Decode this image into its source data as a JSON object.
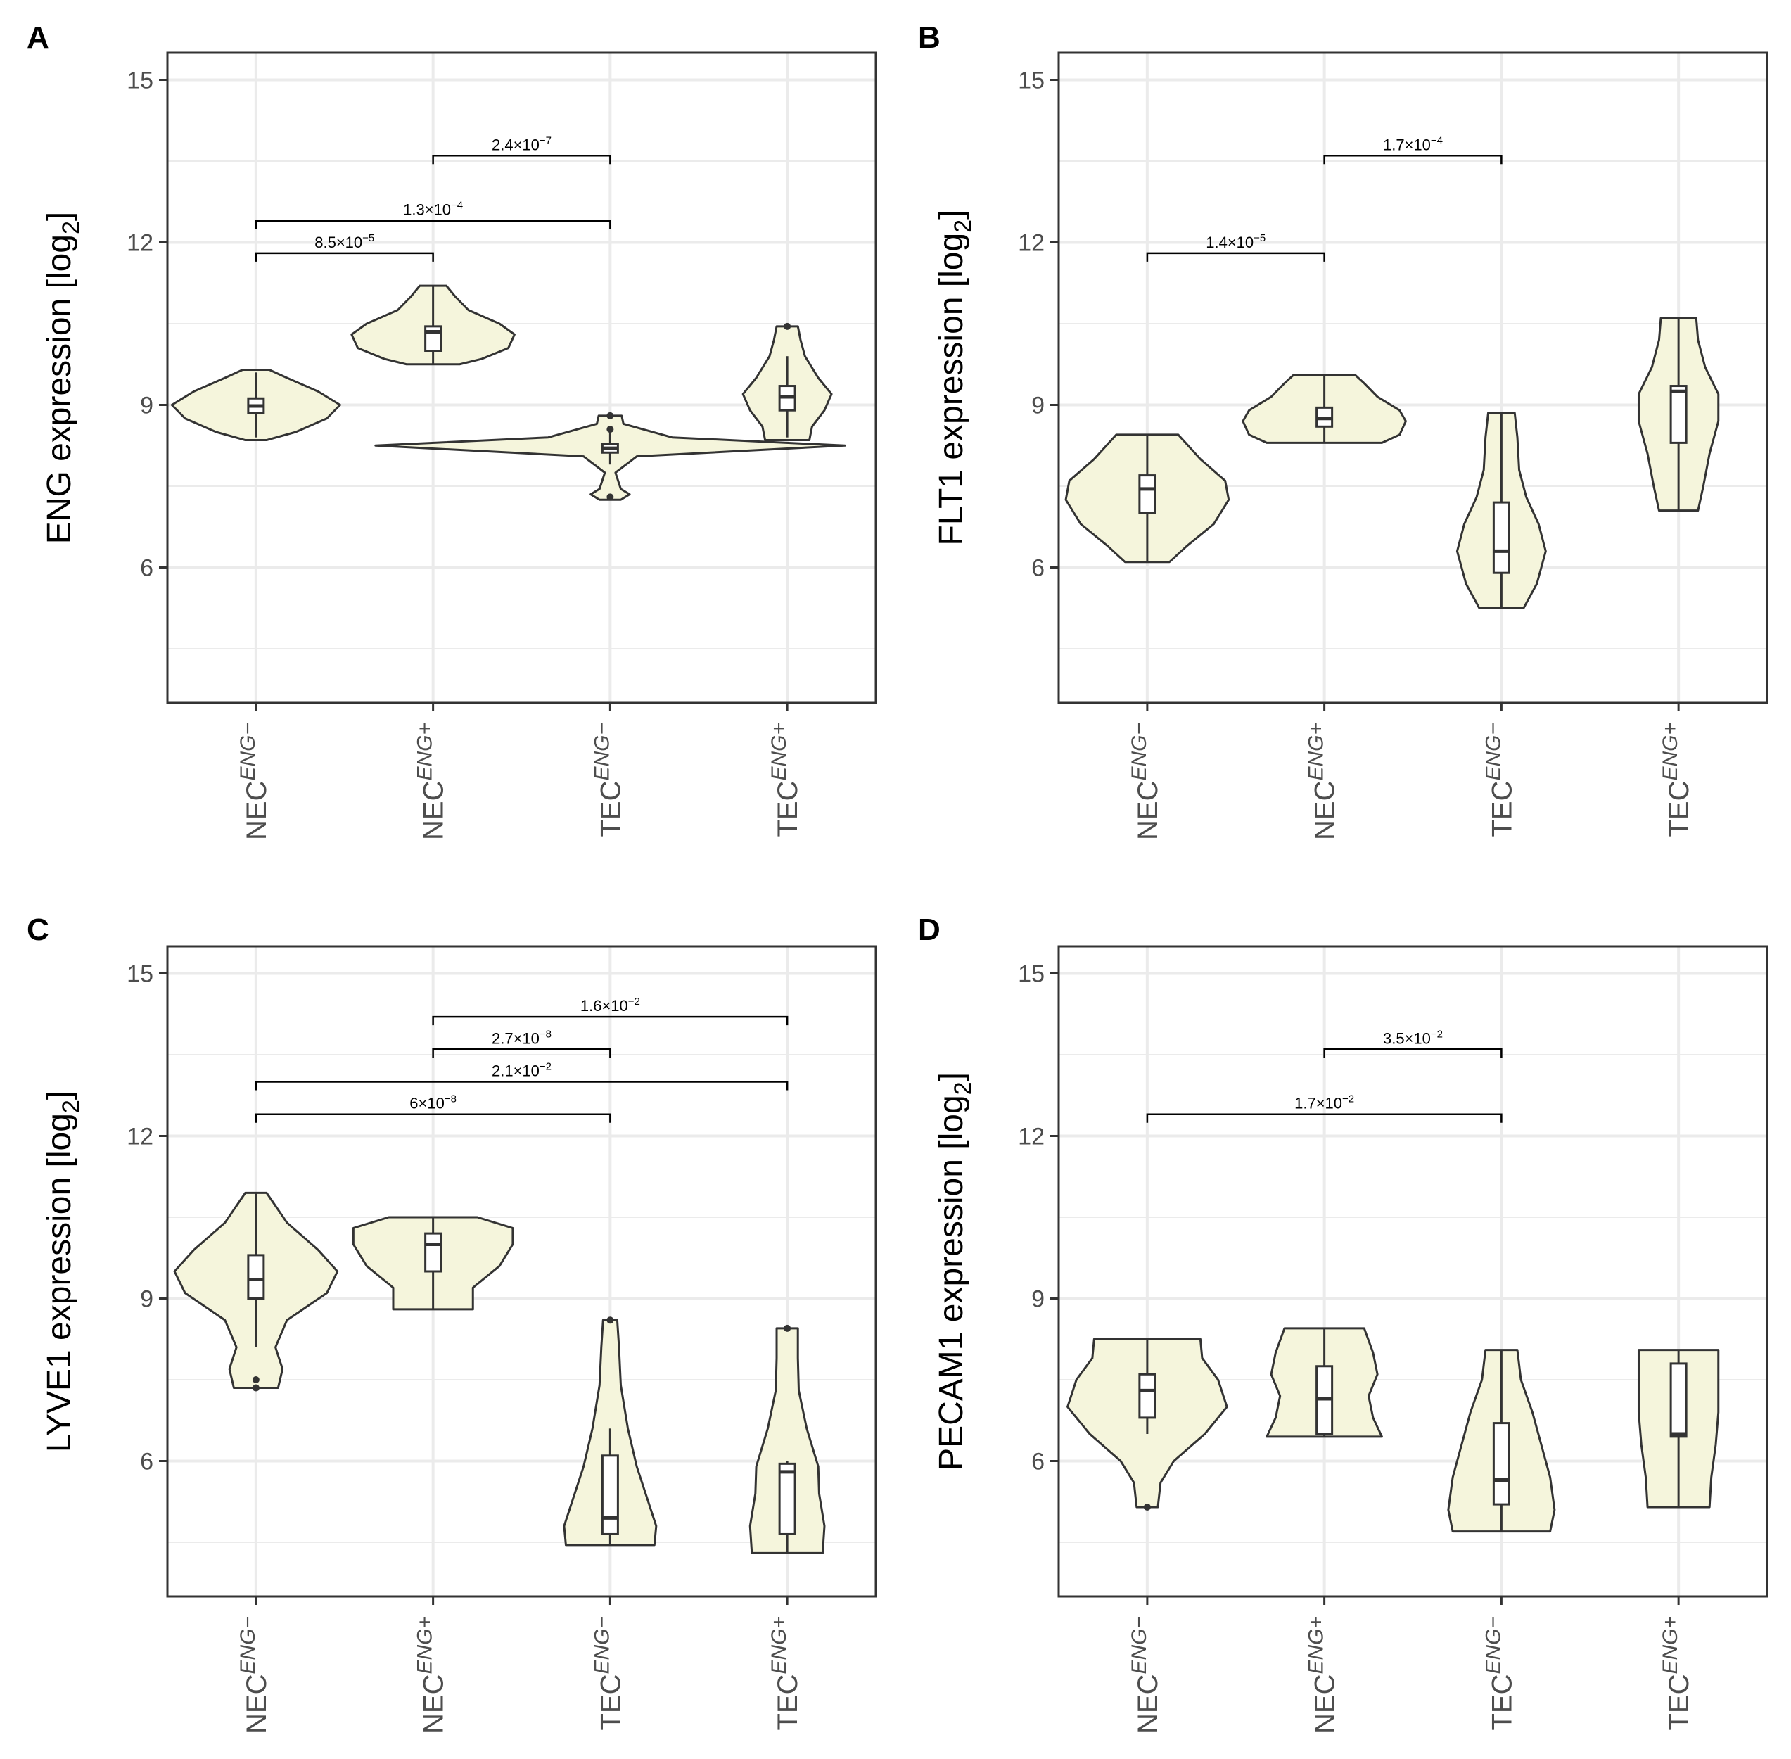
{
  "chart_data": [
    {
      "panel": "A",
      "type": "violin",
      "ylabel": "ENG expression [log",
      "ylabel_sub": "2",
      "ylabel_end": "]",
      "ylim": [
        3.5,
        15.5
      ],
      "yticks": [
        "15",
        "12",
        "9",
        "6"
      ],
      "ytick_values": [
        15,
        12,
        9,
        6
      ],
      "minor_grid": [
        13.5,
        10.5,
        7.5,
        4.5
      ],
      "categories": [
        {
          "base": "NEC",
          "sup": "ENG−"
        },
        {
          "base": "NEC",
          "sup": "ENG+"
        },
        {
          "base": "TEC",
          "sup": "ENG−"
        },
        {
          "base": "TEC",
          "sup": "ENG+"
        }
      ],
      "groups": [
        {
          "violin": [
            [
              8.35,
              0.12
            ],
            [
              8.5,
              0.45
            ],
            [
              8.75,
              0.8
            ],
            [
              9.0,
              0.95
            ],
            [
              9.25,
              0.7
            ],
            [
              9.5,
              0.35
            ],
            [
              9.65,
              0.15
            ]
          ],
          "box": {
            "q1": 8.85,
            "median": 8.98,
            "q3": 9.12,
            "wmin": 8.4,
            "wmax": 9.6
          },
          "outliers": []
        },
        {
          "violin": [
            [
              9.75,
              0.3
            ],
            [
              9.85,
              0.55
            ],
            [
              10.05,
              0.85
            ],
            [
              10.3,
              0.92
            ],
            [
              10.5,
              0.75
            ],
            [
              10.75,
              0.4
            ],
            [
              11.0,
              0.25
            ],
            [
              11.2,
              0.15
            ]
          ],
          "box": {
            "q1": 10.0,
            "median": 10.35,
            "q3": 10.45,
            "wmin": 9.75,
            "wmax": 11.2
          },
          "outliers": []
        },
        {
          "violin": [
            [
              7.25,
              0.12
            ],
            [
              7.35,
              0.22
            ],
            [
              7.45,
              0.12
            ],
            [
              7.75,
              0.06
            ],
            [
              8.05,
              0.3
            ],
            [
              8.25,
              2.65
            ],
            [
              8.4,
              0.7
            ],
            [
              8.65,
              0.15
            ],
            [
              8.8,
              0.13
            ]
          ],
          "box": {
            "q1": 8.12,
            "median": 8.2,
            "q3": 8.28,
            "wmin": 7.9,
            "wmax": 8.5
          },
          "outliers": [
            7.3,
            8.55,
            8.8
          ]
        },
        {
          "violin": [
            [
              8.35,
              0.25
            ],
            [
              8.6,
              0.28
            ],
            [
              8.9,
              0.42
            ],
            [
              9.2,
              0.5
            ],
            [
              9.5,
              0.35
            ],
            [
              9.9,
              0.2
            ],
            [
              10.2,
              0.15
            ],
            [
              10.45,
              0.12
            ]
          ],
          "box": {
            "q1": 8.9,
            "median": 9.15,
            "q3": 9.35,
            "wmin": 8.4,
            "wmax": 9.9
          },
          "outliers": [
            10.45
          ]
        }
      ],
      "brackets": [
        {
          "from": 1,
          "to": 2,
          "y": 13.6,
          "label": "2.4×10",
          "exp": "−7"
        },
        {
          "from": 0,
          "to": 2,
          "y": 12.4,
          "label": "1.3×10",
          "exp": "−4"
        },
        {
          "from": 0,
          "to": 1,
          "y": 11.8,
          "label": "8.5×10",
          "exp": "−5"
        }
      ]
    },
    {
      "panel": "B",
      "type": "violin",
      "ylabel": "FLT1 expression [log",
      "ylabel_sub": "2",
      "ylabel_end": "]",
      "ylim": [
        3.5,
        15.5
      ],
      "yticks": [
        "15",
        "12",
        "9",
        "6"
      ],
      "ytick_values": [
        15,
        12,
        9,
        6
      ],
      "minor_grid": [
        13.5,
        10.5,
        7.5,
        4.5
      ],
      "categories": [
        {
          "base": "NEC",
          "sup": "ENG−"
        },
        {
          "base": "NEC",
          "sup": "ENG+"
        },
        {
          "base": "TEC",
          "sup": "ENG−"
        },
        {
          "base": "TEC",
          "sup": "ENG+"
        }
      ],
      "groups": [
        {
          "violin": [
            [
              6.1,
              0.25
            ],
            [
              6.4,
              0.45
            ],
            [
              6.8,
              0.75
            ],
            [
              7.25,
              0.92
            ],
            [
              7.6,
              0.88
            ],
            [
              8.0,
              0.6
            ],
            [
              8.45,
              0.35
            ]
          ],
          "box": {
            "q1": 7.0,
            "median": 7.45,
            "q3": 7.7,
            "wmin": 6.1,
            "wmax": 8.45
          },
          "outliers": []
        },
        {
          "violin": [
            [
              8.3,
              0.65
            ],
            [
              8.45,
              0.85
            ],
            [
              8.7,
              0.92
            ],
            [
              8.9,
              0.85
            ],
            [
              9.15,
              0.6
            ],
            [
              9.4,
              0.45
            ],
            [
              9.55,
              0.35
            ]
          ],
          "box": {
            "q1": 8.6,
            "median": 8.75,
            "q3": 8.95,
            "wmin": 8.3,
            "wmax": 9.55
          },
          "outliers": []
        },
        {
          "violin": [
            [
              5.25,
              0.25
            ],
            [
              5.7,
              0.4
            ],
            [
              6.3,
              0.5
            ],
            [
              6.8,
              0.42
            ],
            [
              7.3,
              0.28
            ],
            [
              7.8,
              0.2
            ],
            [
              8.4,
              0.18
            ],
            [
              8.85,
              0.15
            ]
          ],
          "box": {
            "q1": 5.9,
            "median": 6.3,
            "q3": 7.2,
            "wmin": 5.25,
            "wmax": 8.85
          },
          "outliers": []
        },
        {
          "violin": [
            [
              7.05,
              0.22
            ],
            [
              7.5,
              0.28
            ],
            [
              8.1,
              0.35
            ],
            [
              8.7,
              0.45
            ],
            [
              9.2,
              0.45
            ],
            [
              9.7,
              0.3
            ],
            [
              10.2,
              0.22
            ],
            [
              10.6,
              0.2
            ]
          ],
          "box": {
            "q1": 8.3,
            "median": 9.25,
            "q3": 9.35,
            "wmin": 7.05,
            "wmax": 10.6
          },
          "outliers": []
        }
      ],
      "brackets": [
        {
          "from": 1,
          "to": 2,
          "y": 13.6,
          "label": "1.7×10",
          "exp": "−4"
        },
        {
          "from": 0,
          "to": 1,
          "y": 11.8,
          "label": "1.4×10",
          "exp": "−5"
        }
      ]
    },
    {
      "panel": "C",
      "type": "violin",
      "ylabel": "LYVE1 expression [log",
      "ylabel_sub": "2",
      "ylabel_end": "]",
      "ylim": [
        3.5,
        15.5
      ],
      "yticks": [
        "15",
        "12",
        "9",
        "6"
      ],
      "ytick_values": [
        15,
        12,
        9,
        6
      ],
      "minor_grid": [
        13.5,
        10.5,
        7.5,
        4.5
      ],
      "categories": [
        {
          "base": "NEC",
          "sup": "ENG−"
        },
        {
          "base": "NEC",
          "sup": "ENG+"
        },
        {
          "base": "TEC",
          "sup": "ENG−"
        },
        {
          "base": "TEC",
          "sup": "ENG+"
        }
      ],
      "groups": [
        {
          "violin": [
            [
              7.35,
              0.25
            ],
            [
              7.7,
              0.3
            ],
            [
              8.1,
              0.22
            ],
            [
              8.6,
              0.35
            ],
            [
              9.1,
              0.8
            ],
            [
              9.5,
              0.92
            ],
            [
              9.9,
              0.7
            ],
            [
              10.4,
              0.35
            ],
            [
              10.95,
              0.12
            ]
          ],
          "box": {
            "q1": 9.0,
            "median": 9.35,
            "q3": 9.8,
            "wmin": 8.1,
            "wmax": 10.95
          },
          "outliers": [
            7.5,
            7.35
          ]
        },
        {
          "violin": [
            [
              8.8,
              0.45
            ],
            [
              9.2,
              0.45
            ],
            [
              9.6,
              0.75
            ],
            [
              10.0,
              0.9
            ],
            [
              10.3,
              0.9
            ],
            [
              10.5,
              0.5
            ]
          ],
          "box": {
            "q1": 9.5,
            "median": 10.0,
            "q3": 10.2,
            "wmin": 8.8,
            "wmax": 10.5
          },
          "outliers": []
        },
        {
          "violin": [
            [
              4.45,
              0.5
            ],
            [
              4.8,
              0.52
            ],
            [
              5.3,
              0.42
            ],
            [
              5.9,
              0.3
            ],
            [
              6.6,
              0.2
            ],
            [
              7.4,
              0.12
            ],
            [
              8.1,
              0.1
            ],
            [
              8.6,
              0.08
            ]
          ],
          "box": {
            "q1": 4.65,
            "median": 4.95,
            "q3": 6.1,
            "wmin": 4.45,
            "wmax": 6.6
          },
          "outliers": [
            8.6
          ]
        },
        {
          "violin": [
            [
              4.3,
              0.4
            ],
            [
              4.8,
              0.42
            ],
            [
              5.4,
              0.36
            ],
            [
              5.9,
              0.35
            ],
            [
              6.6,
              0.22
            ],
            [
              7.3,
              0.13
            ],
            [
              7.9,
              0.12
            ],
            [
              8.45,
              0.12
            ]
          ],
          "box": {
            "q1": 4.65,
            "median": 5.8,
            "q3": 5.95,
            "wmin": 4.3,
            "wmax": 6.0
          },
          "outliers": [
            8.45
          ]
        }
      ],
      "brackets": [
        {
          "from": 1,
          "to": 3,
          "y": 14.2,
          "label": "1.6×10",
          "exp": "−2"
        },
        {
          "from": 1,
          "to": 2,
          "y": 13.6,
          "label": "2.7×10",
          "exp": "−8"
        },
        {
          "from": 0,
          "to": 3,
          "y": 13.0,
          "label": "2.1×10",
          "exp": "−2"
        },
        {
          "from": 0,
          "to": 2,
          "y": 12.4,
          "label": "6×10",
          "exp": "−8"
        }
      ]
    },
    {
      "panel": "D",
      "type": "violin",
      "ylabel": "PECAM1 expression [log",
      "ylabel_sub": "2",
      "ylabel_end": "]",
      "ylim": [
        3.5,
        15.5
      ],
      "yticks": [
        "15",
        "12",
        "9",
        "6"
      ],
      "ytick_values": [
        15,
        12,
        9,
        6
      ],
      "minor_grid": [
        13.5,
        10.5,
        7.5,
        4.5
      ],
      "categories": [
        {
          "base": "NEC",
          "sup": "ENG−"
        },
        {
          "base": "NEC",
          "sup": "ENG+"
        },
        {
          "base": "TEC",
          "sup": "ENG−"
        },
        {
          "base": "TEC",
          "sup": "ENG+"
        }
      ],
      "groups": [
        {
          "violin": [
            [
              5.15,
              0.12
            ],
            [
              5.6,
              0.15
            ],
            [
              6.0,
              0.3
            ],
            [
              6.5,
              0.65
            ],
            [
              7.0,
              0.9
            ],
            [
              7.5,
              0.8
            ],
            [
              7.9,
              0.62
            ],
            [
              8.25,
              0.6
            ]
          ],
          "box": {
            "q1": 6.8,
            "median": 7.3,
            "q3": 7.6,
            "wmin": 6.5,
            "wmax": 8.25
          },
          "outliers": [
            5.15
          ]
        },
        {
          "violin": [
            [
              6.45,
              0.65
            ],
            [
              6.8,
              0.55
            ],
            [
              7.2,
              0.5
            ],
            [
              7.6,
              0.6
            ],
            [
              8.0,
              0.55
            ],
            [
              8.45,
              0.45
            ]
          ],
          "box": {
            "q1": 6.5,
            "median": 7.15,
            "q3": 7.75,
            "wmin": 6.45,
            "wmax": 8.45
          },
          "outliers": []
        },
        {
          "violin": [
            [
              4.7,
              0.55
            ],
            [
              5.1,
              0.6
            ],
            [
              5.7,
              0.55
            ],
            [
              6.3,
              0.45
            ],
            [
              6.9,
              0.35
            ],
            [
              7.5,
              0.22
            ],
            [
              8.05,
              0.18
            ]
          ],
          "box": {
            "q1": 5.2,
            "median": 5.65,
            "q3": 6.7,
            "wmin": 4.7,
            "wmax": 8.05
          },
          "outliers": []
        },
        {
          "violin": [
            [
              5.15,
              0.35
            ],
            [
              5.7,
              0.37
            ],
            [
              6.3,
              0.42
            ],
            [
              6.9,
              0.45
            ],
            [
              7.5,
              0.45
            ],
            [
              8.05,
              0.45
            ]
          ],
          "box": {
            "q1": 6.45,
            "median": 6.5,
            "q3": 7.8,
            "wmin": 5.15,
            "wmax": 8.05
          },
          "outliers": []
        }
      ],
      "brackets": [
        {
          "from": 1,
          "to": 2,
          "y": 13.6,
          "label": "3.5×10",
          "exp": "−2"
        },
        {
          "from": 0,
          "to": 2,
          "y": 12.4,
          "label": "1.7×10",
          "exp": "−2"
        }
      ]
    }
  ],
  "colors": {
    "violin_fill": "#f5f5dc",
    "stroke": "#333333",
    "grid": "#ebebeb",
    "panel_border": "#333333"
  }
}
